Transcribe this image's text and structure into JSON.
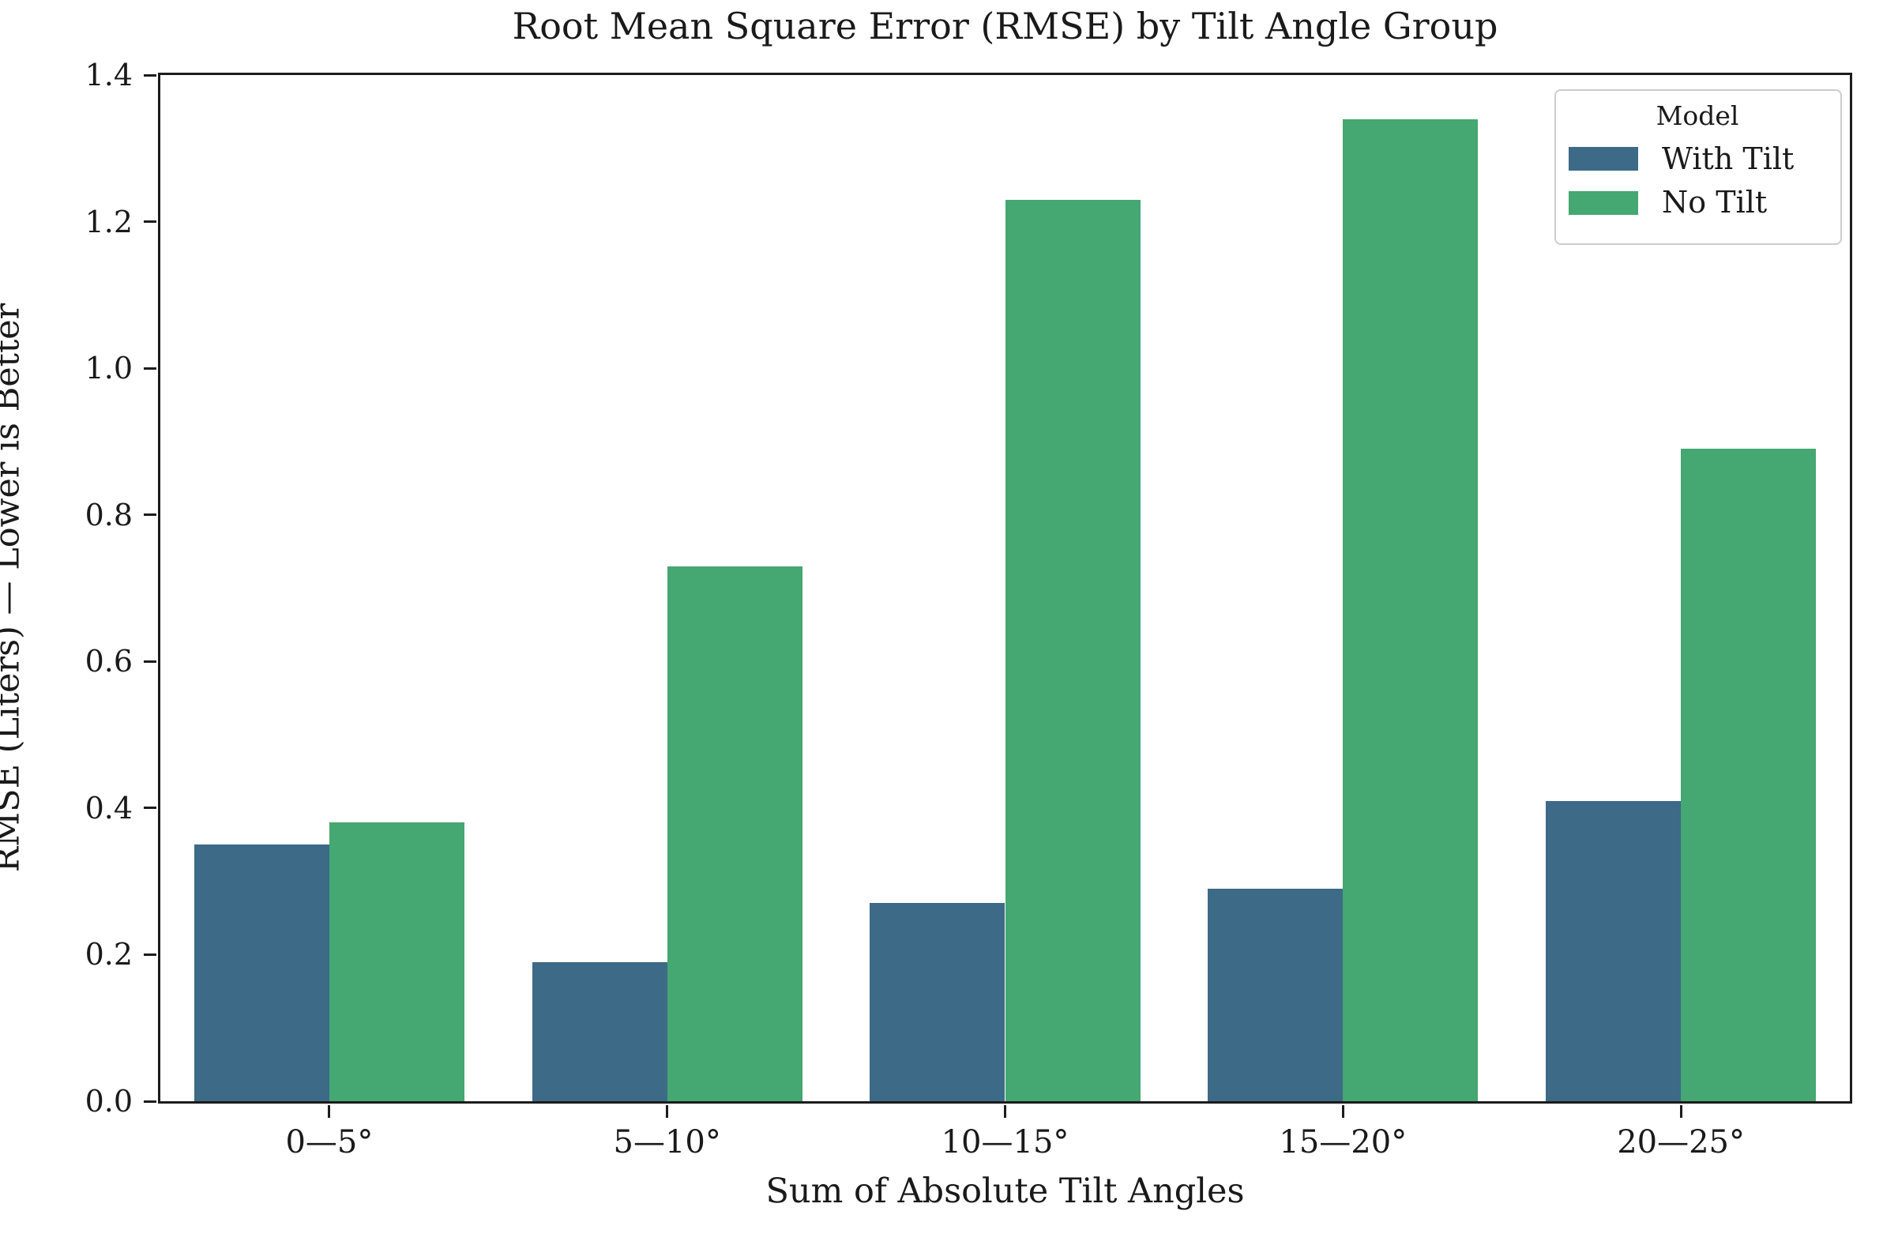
{
  "title": "Root Mean Square Error (RMSE) by Tilt Angle Group",
  "chart_data": {
    "type": "bar",
    "title": "Root Mean Square Error (RMSE) by Tilt Angle Group",
    "xlabel": "Sum of Absolute Tilt Angles",
    "ylabel": "RMSE (Liters) — Lower is Better",
    "categories": [
      "0—5°",
      "5—10°",
      "10—15°",
      "15—20°",
      "20—25°"
    ],
    "series": [
      {
        "name": "With Tilt",
        "color": "#3d6a87",
        "values": [
          0.35,
          0.19,
          0.27,
          0.29,
          0.41
        ]
      },
      {
        "name": "No Tilt",
        "color": "#45a771",
        "values": [
          0.38,
          0.73,
          1.23,
          1.34,
          0.89
        ]
      }
    ],
    "ylim": [
      0,
      1.4
    ],
    "yticks": [
      0.0,
      0.2,
      0.4,
      0.6,
      0.8,
      1.0,
      1.2,
      1.4
    ],
    "grid": false,
    "legend": {
      "title": "Model",
      "position": "upper right"
    }
  },
  "colors": {
    "spine": "#1c1c1c",
    "text": "#1a1a1a",
    "legend_border": "#cccccc",
    "background": "#ffffff"
  }
}
